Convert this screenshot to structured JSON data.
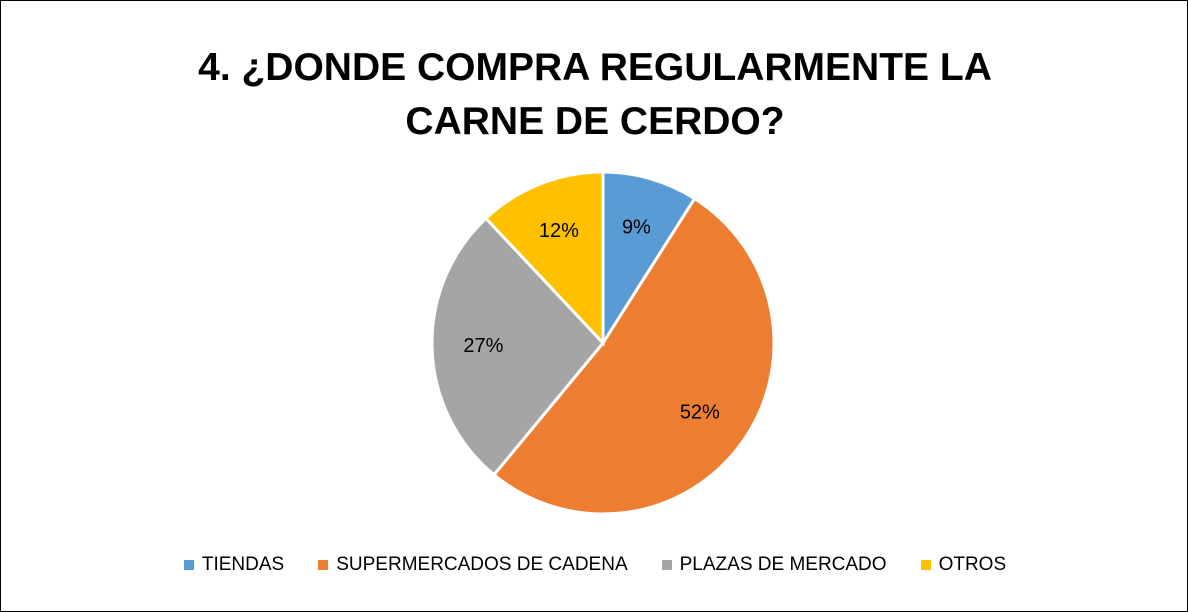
{
  "chart_data": {
    "type": "pie",
    "title": "4. ¿DONDE COMPRA REGULARMENTE LA CARNE DE CERDO?",
    "categories": [
      "TIENDAS",
      "SUPERMERCADOS DE CADENA",
      "PLAZAS DE MERCADO",
      "OTROS"
    ],
    "values": [
      9,
      52,
      27,
      12
    ],
    "value_labels": [
      "9%",
      "52%",
      "27%",
      "12%"
    ],
    "colors": [
      "#5b9bd5",
      "#ed7d31",
      "#a5a5a5",
      "#ffc000"
    ],
    "legend": "bottom"
  }
}
